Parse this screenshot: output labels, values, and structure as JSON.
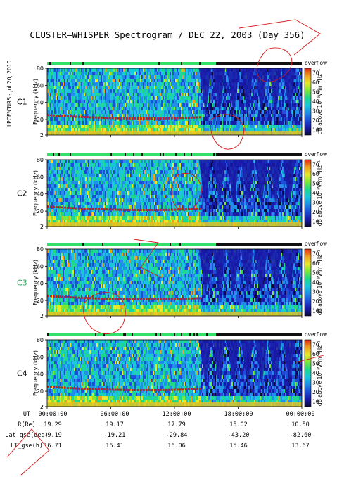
{
  "title": "CLUSTER–WHISPER Spectrogram / DEC 22, 2003 (Day 356)",
  "credit": "LPCE/CNRS - Jul 20, 2010",
  "chart_data": {
    "type": "heatmap",
    "panels": [
      {
        "name": "C1",
        "label_color": "#000000",
        "ylabel": "Frequency (kHz)",
        "yticks": [
          2,
          20,
          40,
          60,
          80
        ],
        "ylim": [
          2,
          80
        ],
        "colorbar": {
          "label": "dB above 10⁻⁸V²m⁻²Hz⁻¹",
          "ticks": [
            10,
            20,
            30,
            40,
            50,
            60,
            70
          ],
          "header": "overflow"
        }
      },
      {
        "name": "C2",
        "label_color": "#000000",
        "ylabel": "Frequency (kHz)",
        "yticks": [
          2,
          20,
          40,
          60,
          80
        ],
        "ylim": [
          2,
          80
        ],
        "colorbar": {
          "label": "dB above 10⁻⁸V²m⁻²Hz⁻¹",
          "ticks": [
            10,
            20,
            30,
            40,
            50,
            60,
            70
          ],
          "header": "overflow"
        }
      },
      {
        "name": "C3",
        "label_color": "#22aa55",
        "ylabel": "Frequency (kHz)",
        "yticks": [
          2,
          20,
          40,
          60,
          80
        ],
        "ylim": [
          2,
          80
        ],
        "colorbar": {
          "label": "dB above 10⁻⁸V²m⁻²Hz⁻¹",
          "ticks": [
            10,
            20,
            30,
            40,
            50,
            60,
            70
          ],
          "header": "overflow"
        }
      },
      {
        "name": "C4",
        "label_color": "#000000",
        "ylabel": "Frequency (kHz)",
        "yticks": [
          2,
          20,
          40,
          60,
          80
        ],
        "ylim": [
          2,
          80
        ],
        "colorbar": {
          "label": "dB above 10⁻⁸V²m⁻²Hz⁻¹",
          "ticks": [
            10,
            20,
            30,
            40,
            50,
            60,
            70
          ],
          "header": "overflow"
        }
      }
    ],
    "x_ticks": [
      "00:00:00",
      "06:00:00",
      "12:00:00",
      "18:00:00",
      "00:00:00"
    ],
    "ephemeris": [
      {
        "label": "UT",
        "values": [
          "00:00:00",
          "06:00:00",
          "12:00:00",
          "18:00:00",
          "00:00:00"
        ]
      },
      {
        "label": "R(Re)",
        "values": [
          "19.29",
          "19.17",
          "17.79",
          "15.02",
          "10.50"
        ]
      },
      {
        "label": "Lat_gse(deg)",
        "values": [
          "-9.19",
          "-19.21",
          "-29.84",
          "-43.20",
          "-82.60"
        ]
      },
      {
        "label": "LT_gse(h)",
        "values": [
          "16.71",
          "16.41",
          "16.06",
          "15.46",
          "13.67"
        ]
      }
    ],
    "colormap": [
      "#0b0b3a",
      "#1a1aa8",
      "#1e4ed8",
      "#1f8fe8",
      "#18c8d8",
      "#1fd88a",
      "#7ee83a",
      "#e8e82a",
      "#f0a020",
      "#e02818"
    ],
    "band_description_colors": {
      "line": "#d81818",
      "band": "#e8c020"
    }
  }
}
